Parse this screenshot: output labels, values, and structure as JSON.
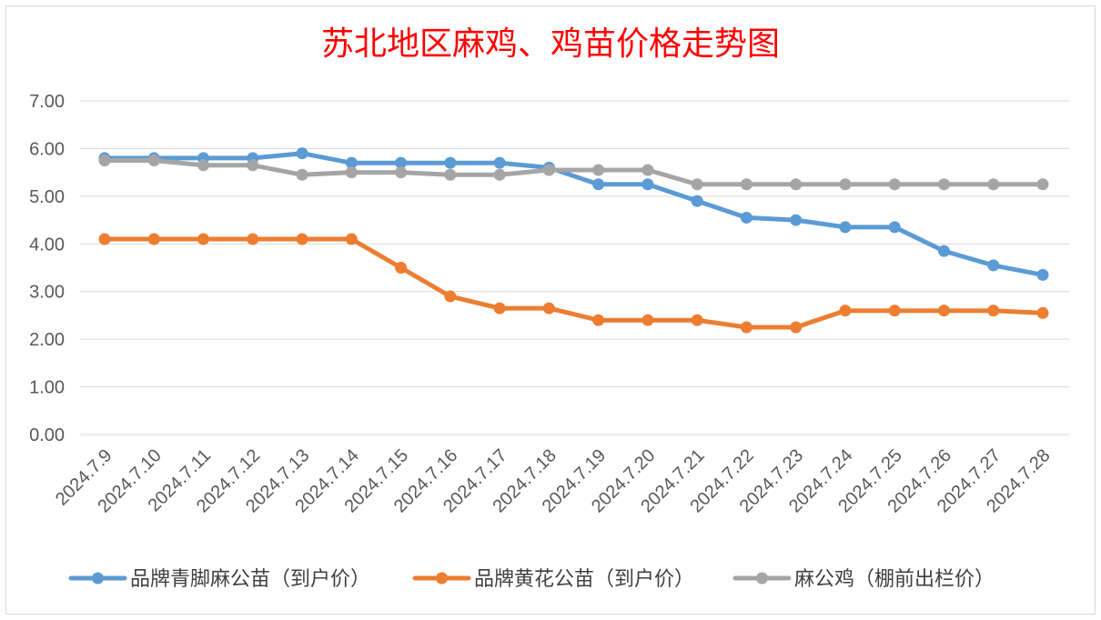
{
  "chart_data": {
    "type": "line",
    "title": "苏北地区麻鸡、鸡苗价格走势图",
    "xlabel": "",
    "ylabel": "",
    "ylim": [
      0,
      7
    ],
    "yticks": [
      "0.00",
      "1.00",
      "2.00",
      "3.00",
      "4.00",
      "5.00",
      "6.00",
      "7.00"
    ],
    "grid": true,
    "legend_position": "bottom",
    "categories": [
      "2024.7.9",
      "2024.7.10",
      "2024.7.11",
      "2024.7.12",
      "2024.7.13",
      "2024.7.14",
      "2024.7.15",
      "2024.7.16",
      "2024.7.17",
      "2024.7.18",
      "2024.7.19",
      "2024.7.20",
      "2024.7.21",
      "2024.7.22",
      "2024.7.23",
      "2024.7.24",
      "2024.7.25",
      "2024.7.26",
      "2024.7.27",
      "2024.7.28"
    ],
    "series": [
      {
        "name": "品牌青脚麻公苗（到户价）",
        "color": "#5b9bd5",
        "values": [
          5.8,
          5.8,
          5.8,
          5.8,
          5.9,
          5.7,
          5.7,
          5.7,
          5.7,
          5.6,
          5.25,
          5.25,
          4.9,
          4.55,
          4.5,
          4.35,
          4.35,
          3.85,
          3.55,
          3.35
        ]
      },
      {
        "name": "品牌黄花公苗（到户价）",
        "color": "#ed7d31",
        "values": [
          4.1,
          4.1,
          4.1,
          4.1,
          4.1,
          4.1,
          3.5,
          2.9,
          2.65,
          2.65,
          2.4,
          2.4,
          2.4,
          2.25,
          2.25,
          2.6,
          2.6,
          2.6,
          2.6,
          2.55
        ]
      },
      {
        "name": "麻公鸡（棚前出栏价）",
        "color": "#a5a5a5",
        "values": [
          5.75,
          5.75,
          5.65,
          5.65,
          5.45,
          5.5,
          5.5,
          5.45,
          5.45,
          5.55,
          5.55,
          5.55,
          5.25,
          5.25,
          5.25,
          5.25,
          5.25,
          5.25,
          5.25,
          5.25
        ]
      }
    ]
  }
}
